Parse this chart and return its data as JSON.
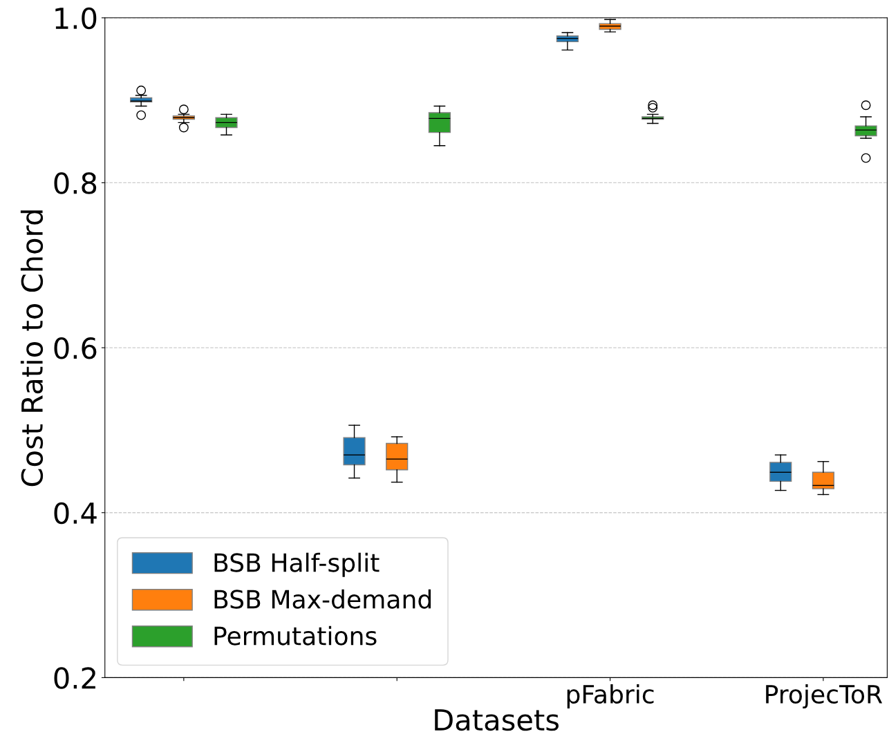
{
  "chart_data": {
    "type": "box",
    "xlabel": "Datasets",
    "ylabel": "Cost Ratio to Chord",
    "categories": [
      null,
      null,
      "pFabric",
      "ProjecToR"
    ],
    "ylim": [
      0.2,
      1.0
    ],
    "yticks": [
      {
        "value": 0.2,
        "label": "0.2"
      },
      {
        "value": 0.4,
        "label": "0.4"
      },
      {
        "value": 0.6,
        "label": "0.6"
      },
      {
        "value": 0.8,
        "label": "0.8"
      },
      {
        "value": 1.0,
        "label": "1.0"
      }
    ],
    "grid": "y",
    "legend": "bottom left",
    "series": [
      {
        "name": "BSB Half-split",
        "color": "#1f77b4",
        "boxes": [
          {
            "low": 0.893,
            "q1": 0.898,
            "median": 0.899,
            "q3": 0.903,
            "high": 0.906,
            "outliers": [
              0.912,
              0.882
            ]
          },
          {
            "low": 0.442,
            "q1": 0.458,
            "median": 0.47,
            "q3": 0.491,
            "high": 0.506
          },
          {
            "low": 0.961,
            "q1": 0.971,
            "median": 0.975,
            "q3": 0.978,
            "high": 0.982
          },
          {
            "low": 0.427,
            "q1": 0.438,
            "median": 0.449,
            "q3": 0.461,
            "high": 0.47
          }
        ]
      },
      {
        "name": "BSB Max-demand",
        "color": "#ff7f0e",
        "boxes": [
          {
            "low": 0.873,
            "q1": 0.877,
            "median": 0.879,
            "q3": 0.881,
            "high": 0.883,
            "outliers": [
              0.889,
              0.867
            ]
          },
          {
            "low": 0.437,
            "q1": 0.452,
            "median": 0.465,
            "q3": 0.484,
            "high": 0.492
          },
          {
            "low": 0.983,
            "q1": 0.986,
            "median": 0.99,
            "q3": 0.993,
            "high": 0.998
          },
          {
            "low": 0.422,
            "q1": 0.429,
            "median": 0.433,
            "q3": 0.449,
            "high": 0.462
          }
        ]
      },
      {
        "name": "Permutations",
        "color": "#2ca02c",
        "boxes": [
          {
            "low": 0.858,
            "q1": 0.867,
            "median": 0.873,
            "q3": 0.879,
            "high": 0.883
          },
          {
            "low": 0.845,
            "q1": 0.861,
            "median": 0.878,
            "q3": 0.885,
            "high": 0.893
          },
          {
            "low": 0.872,
            "q1": 0.877,
            "median": 0.878,
            "q3": 0.88,
            "high": 0.883,
            "outliers": [
              0.894,
              0.891
            ]
          },
          {
            "low": 0.854,
            "q1": 0.857,
            "median": 0.864,
            "q3": 0.869,
            "high": 0.88,
            "outliers": [
              0.894,
              0.83
            ]
          }
        ]
      }
    ]
  }
}
